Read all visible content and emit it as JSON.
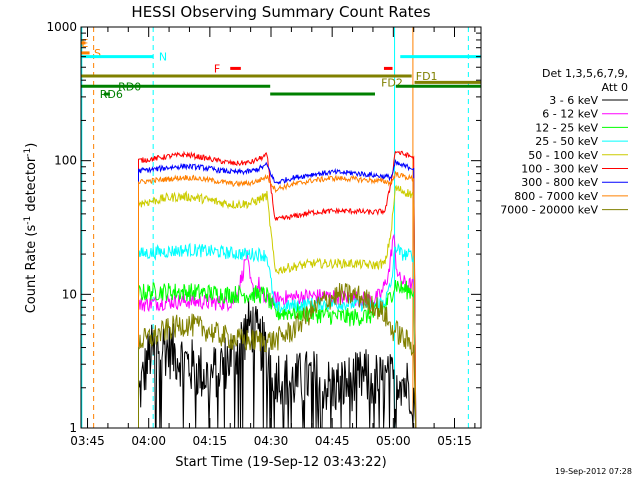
{
  "chart_data": {
    "type": "line",
    "title": "HESSI Observing Summary Count Rates",
    "xlabel": "Start Time (19-Sep-12 03:43:22)",
    "ylabel": "Count Rate (s⁻¹ detector⁻¹)",
    "ylabel_main": "Count Rate (s",
    "ylabel_sup1": "-1",
    "ylabel_mid": " detector",
    "ylabel_sup2": "-1",
    "ylabel_end": ")",
    "y_scale": "log",
    "ylim": [
      1,
      1000
    ],
    "xlim_minutes": [
      -1.6,
      96.5
    ],
    "xlim_note": "minutes after 03:45 UT",
    "y_ticks": [
      "1",
      "10",
      "100",
      "1000"
    ],
    "x_ticks": [
      "03:45",
      "04:00",
      "04:15",
      "04:30",
      "04:45",
      "05:00",
      "05:15"
    ],
    "x_tick_minutes": [
      0,
      15,
      30,
      45,
      60,
      75,
      90
    ],
    "grid": false,
    "legend_position": "right",
    "legend_header": [
      "Det 1,3,5,6,7,9,",
      "Att 0"
    ],
    "series": [
      {
        "name": "3 - 6 keV",
        "color": "#000000",
        "values": [
          [
            12.5,
            1.7
          ],
          [
            15,
            3.5
          ],
          [
            18,
            4.2
          ],
          [
            22,
            3.5
          ],
          [
            26,
            2.8
          ],
          [
            30,
            2.4
          ],
          [
            33,
            3.0
          ],
          [
            36,
            3.6
          ],
          [
            40,
            6.2
          ],
          [
            42,
            4.5
          ],
          [
            44,
            3.8
          ],
          [
            46,
            2.6
          ],
          [
            48,
            2.4
          ],
          [
            50,
            2.2
          ],
          [
            55,
            2.4
          ],
          [
            60,
            2.0
          ],
          [
            65,
            2.2
          ],
          [
            68,
            2.4
          ],
          [
            70,
            2.3
          ],
          [
            72,
            2.2
          ],
          [
            74,
            2.2
          ],
          [
            75.5,
            2.3
          ],
          [
            76.5,
            2.5
          ],
          [
            78,
            2.1
          ],
          [
            80,
            2.0
          ],
          [
            80.5,
            1.0
          ]
        ]
      },
      {
        "name": "6 - 12 keV",
        "color": "#ff00ff",
        "values": [
          [
            12.5,
            8.4
          ],
          [
            16,
            8.6
          ],
          [
            20,
            8.8
          ],
          [
            25,
            8.9
          ],
          [
            30,
            8.7
          ],
          [
            34,
            8.6
          ],
          [
            36,
            9.0
          ],
          [
            38,
            14
          ],
          [
            39,
            20
          ],
          [
            40,
            12
          ],
          [
            41,
            10
          ],
          [
            42,
            12
          ],
          [
            43,
            9.5
          ],
          [
            44,
            8.8
          ],
          [
            46,
            9.2
          ],
          [
            50,
            9.5
          ],
          [
            55,
            9.7
          ],
          [
            60,
            9.6
          ],
          [
            65,
            9.4
          ],
          [
            68,
            9.2
          ],
          [
            70,
            9.0
          ],
          [
            72,
            10
          ],
          [
            73,
            12
          ],
          [
            74,
            15
          ],
          [
            75,
            28
          ],
          [
            75.8,
            16
          ],
          [
            76.5,
            13
          ],
          [
            78,
            12
          ],
          [
            80,
            11.5
          ],
          [
            80.5,
            1.0
          ]
        ]
      },
      {
        "name": "12 - 25 keV",
        "color": "#00ff00",
        "values": [
          [
            12.5,
            10.2
          ],
          [
            16,
            10.5
          ],
          [
            20,
            10.5
          ],
          [
            25,
            10.4
          ],
          [
            30,
            10.2
          ],
          [
            34,
            10.0
          ],
          [
            38,
            10.0
          ],
          [
            42,
            10.0
          ],
          [
            44,
            9.8
          ],
          [
            46,
            7.2
          ],
          [
            50,
            7.4
          ],
          [
            55,
            7.2
          ],
          [
            60,
            6.9
          ],
          [
            65,
            6.7
          ],
          [
            70,
            7.0
          ],
          [
            73,
            8.0
          ],
          [
            74.5,
            10
          ],
          [
            75.5,
            12
          ],
          [
            77,
            11
          ],
          [
            80,
            10.5
          ],
          [
            80.5,
            1.0
          ]
        ]
      },
      {
        "name": "25 - 50 keV",
        "color": "#00ffff",
        "values": [
          [
            12.5,
            20
          ],
          [
            16,
            20.5
          ],
          [
            20,
            21
          ],
          [
            25,
            21.5
          ],
          [
            30,
            21
          ],
          [
            34,
            20.5
          ],
          [
            38,
            20
          ],
          [
            42,
            20
          ],
          [
            44,
            19.5
          ],
          [
            46,
            7.8
          ],
          [
            50,
            8.2
          ],
          [
            55,
            8.5
          ],
          [
            60,
            8.5
          ],
          [
            65,
            8.5
          ],
          [
            70,
            8.3
          ],
          [
            73,
            9.0
          ],
          [
            74.5,
            12
          ],
          [
            75.5,
            23
          ],
          [
            77,
            20
          ],
          [
            80,
            19.5
          ],
          [
            80.5,
            1.0
          ]
        ]
      },
      {
        "name": "50 - 100 keV",
        "color": "#cccc00",
        "values": [
          [
            12.5,
            48
          ],
          [
            16,
            50
          ],
          [
            20,
            53
          ],
          [
            24,
            54
          ],
          [
            28,
            52
          ],
          [
            32,
            49
          ],
          [
            36,
            47
          ],
          [
            40,
            48
          ],
          [
            42,
            51
          ],
          [
            44,
            55
          ],
          [
            46,
            15
          ],
          [
            50,
            16
          ],
          [
            55,
            17
          ],
          [
            60,
            17
          ],
          [
            65,
            17
          ],
          [
            70,
            16.5
          ],
          [
            73,
            17
          ],
          [
            74.5,
            30
          ],
          [
            75.5,
            62
          ],
          [
            77,
            60
          ],
          [
            80,
            55
          ],
          [
            80.5,
            1.0
          ]
        ]
      },
      {
        "name": "100 - 300 keV",
        "color": "#ff0000",
        "values": [
          [
            12.5,
            100
          ],
          [
            16,
            103
          ],
          [
            20,
            108
          ],
          [
            24,
            111
          ],
          [
            28,
            106
          ],
          [
            32,
            100
          ],
          [
            36,
            95
          ],
          [
            40,
            97
          ],
          [
            42,
            103
          ],
          [
            44,
            110
          ],
          [
            46,
            36
          ],
          [
            50,
            38
          ],
          [
            55,
            41
          ],
          [
            60,
            42
          ],
          [
            65,
            42
          ],
          [
            70,
            41
          ],
          [
            73,
            42
          ],
          [
            74.5,
            70
          ],
          [
            75.5,
            118
          ],
          [
            77,
            113
          ],
          [
            80,
            106
          ],
          [
            80.5,
            1.0
          ]
        ]
      },
      {
        "name": "300 - 800 keV",
        "color": "#0000ff",
        "values": [
          [
            12.5,
            84
          ],
          [
            16,
            86
          ],
          [
            20,
            89
          ],
          [
            24,
            91
          ],
          [
            28,
            89
          ],
          [
            32,
            85
          ],
          [
            36,
            82
          ],
          [
            40,
            83
          ],
          [
            42,
            87
          ],
          [
            44,
            93
          ],
          [
            46,
            68
          ],
          [
            50,
            74
          ],
          [
            55,
            79
          ],
          [
            60,
            82
          ],
          [
            65,
            81
          ],
          [
            70,
            78
          ],
          [
            73,
            76
          ],
          [
            74.5,
            75
          ],
          [
            75.5,
            96
          ],
          [
            77,
            92
          ],
          [
            80,
            88
          ],
          [
            80.5,
            1.0
          ]
        ]
      },
      {
        "name": "800 - 7000 keV",
        "color": "#ff8000",
        "values": [
          [
            12.5,
            69
          ],
          [
            16,
            71
          ],
          [
            20,
            73
          ],
          [
            24,
            75
          ],
          [
            28,
            73
          ],
          [
            32,
            70
          ],
          [
            36,
            67
          ],
          [
            40,
            68
          ],
          [
            42,
            71
          ],
          [
            44,
            76
          ],
          [
            46,
            61
          ],
          [
            50,
            66
          ],
          [
            55,
            71
          ],
          [
            60,
            74
          ],
          [
            65,
            73
          ],
          [
            70,
            71
          ],
          [
            73,
            70
          ],
          [
            74.5,
            68
          ],
          [
            75.5,
            80
          ],
          [
            77,
            77
          ],
          [
            80,
            73
          ],
          [
            80.5,
            1.0
          ]
        ]
      },
      {
        "name": "7000 - 20000 keV",
        "color": "#808000",
        "values": [
          [
            12.5,
            4.4
          ],
          [
            16,
            4.8
          ],
          [
            20,
            5.5
          ],
          [
            24,
            6.0
          ],
          [
            28,
            5.6
          ],
          [
            32,
            5.0
          ],
          [
            36,
            4.6
          ],
          [
            40,
            4.5
          ],
          [
            42,
            4.5
          ],
          [
            44,
            4.5
          ],
          [
            46,
            4.5
          ],
          [
            50,
            5.3
          ],
          [
            54,
            7.0
          ],
          [
            58,
            9.0
          ],
          [
            62,
            10.0
          ],
          [
            66,
            9.8
          ],
          [
            70,
            8.5
          ],
          [
            73,
            7.0
          ],
          [
            74.5,
            5.5
          ],
          [
            76,
            5.2
          ],
          [
            78,
            4.5
          ],
          [
            80,
            4.2
          ],
          [
            80.5,
            1.0
          ]
        ]
      }
    ],
    "flags": [
      {
        "label": "E",
        "color": "#ff8000",
        "y_rate": 760,
        "segments": [
          [
            -1.6,
            -0.5
          ]
        ],
        "label_at": -1.5
      },
      {
        "label": "S",
        "color": "#ff8000",
        "y_rate": 640,
        "segments": [
          [
            -1.6,
            0.5
          ]
        ],
        "label_at": 1.6
      },
      {
        "label": "N",
        "color": "#00ffff",
        "y_rate": 600,
        "segments": [
          [
            -1.6,
            16.2
          ],
          [
            76.7,
            96.5
          ]
        ],
        "label_at": 17.5
      },
      {
        "label": "F",
        "color": "#ff0000",
        "y_rate": 490,
        "segments": [
          [
            35,
            37.6
          ],
          [
            72.7,
            74.8
          ]
        ],
        "label_at": 31
      },
      {
        "label": "FD1",
        "color": "#808000",
        "y_rate": 430,
        "segments": [
          [
            -1.6,
            79.5
          ]
        ],
        "label_at": 80.5
      },
      {
        "label": "FD2",
        "color": "#808000",
        "y_rate": 385,
        "segments": [
          [
            80.2,
            96.5
          ]
        ],
        "label_at": 72
      },
      {
        "label": "RD0",
        "color": "#008000",
        "y_rate": 360,
        "segments": [
          [
            -1.6,
            44.8
          ],
          [
            75.6,
            96.5
          ]
        ],
        "label_at": 7.5
      },
      {
        "label": "RD6",
        "color": "#008000",
        "y_rate": 315,
        "segments": [
          [
            4,
            5.5
          ],
          [
            44.8,
            70.5
          ]
        ],
        "label_at": 3
      }
    ],
    "vlines": [
      {
        "x": 1.5,
        "color": "#ff8000",
        "dashed": true
      },
      {
        "x": -1.4,
        "color": "#00ffff",
        "dashed": false
      },
      {
        "x": 16.1,
        "color": "#00ffff",
        "dashed": true
      },
      {
        "x": 75.3,
        "color": "#00ffff",
        "dashed": false
      },
      {
        "x": 93.4,
        "color": "#00ffff",
        "dashed": true
      },
      {
        "x": 79.8,
        "color": "#ff8000",
        "dashed": false
      }
    ]
  },
  "footer": {
    "timestamp": "19-Sep-2012 07:28"
  }
}
